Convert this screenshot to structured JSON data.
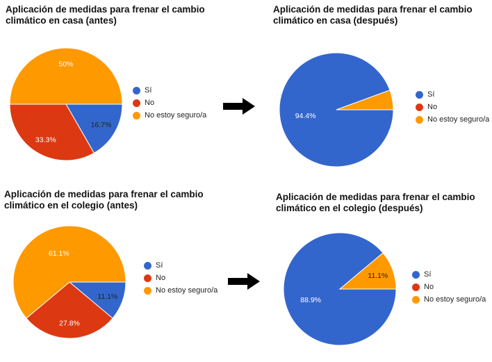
{
  "chart_data": [
    {
      "type": "pie",
      "title": "Aplicación de medidas para frenar el cambio\nclimático en casa (antes)",
      "categories": [
        "Sí",
        "No",
        "No estoy seguro/a"
      ],
      "values": [
        16.7,
        33.3,
        50
      ],
      "value_labels": [
        "16.7%",
        "33.3%",
        "50%"
      ],
      "colors": [
        "#3366cc",
        "#dc3912",
        "#ff9900"
      ],
      "legend_position": "right"
    },
    {
      "type": "pie",
      "title": "Aplicación de medidas para frenar el cambio\nclimático en casa (después)",
      "categories": [
        "Sí",
        "No",
        "No estoy seguro/a"
      ],
      "values": [
        94.4,
        0,
        5.6
      ],
      "value_labels": [
        "94.4%",
        "",
        ""
      ],
      "colors": [
        "#3366cc",
        "#dc3912",
        "#ff9900"
      ],
      "legend_position": "right"
    },
    {
      "type": "pie",
      "title": "Aplicación de medidas para frenar el cambio\nclimático en el colegio (antes)",
      "categories": [
        "Sí",
        "No",
        "No estoy seguro/a"
      ],
      "values": [
        11.1,
        27.8,
        61.1
      ],
      "value_labels": [
        "11.1%",
        "27.8%",
        "61.1%"
      ],
      "colors": [
        "#3366cc",
        "#dc3912",
        "#ff9900"
      ],
      "legend_position": "right"
    },
    {
      "type": "pie",
      "title": "Aplicación de medidas para frenar el cambio\nclimático en el colegio (después)",
      "categories": [
        "Sí",
        "No",
        "No estoy seguro/a"
      ],
      "values": [
        88.9,
        0,
        11.1
      ],
      "value_labels": [
        "88.9%",
        "",
        "11.1%"
      ],
      "colors": [
        "#3366cc",
        "#dc3912",
        "#ff9900"
      ],
      "legend_position": "right"
    }
  ],
  "arrow_icon": "right-arrow-icon"
}
